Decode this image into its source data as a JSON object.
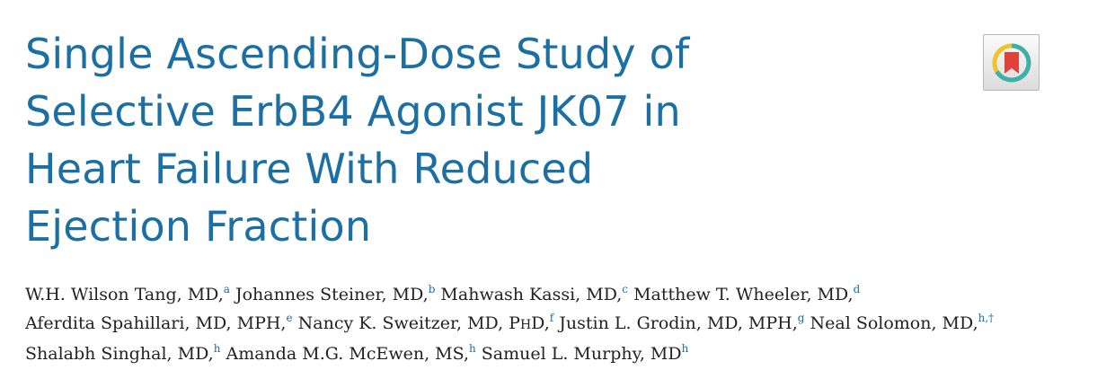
{
  "article": {
    "title_lines": [
      "Single Ascending-Dose Study of",
      "Selective ErbB4 Agonist JK07 in",
      "Heart Failure With Reduced",
      "Ejection Fraction"
    ]
  },
  "crossmark": {
    "icon": "crossmark-icon",
    "colors": {
      "ring_teal": "#3db0a8",
      "ring_yellow": "#f2c12e",
      "bookmark_red": "#e0423b"
    }
  },
  "authors": {
    "lines": [
      [
        {
          "name": "W.H. Wilson Tang, MD,",
          "aff": "a"
        },
        {
          "name": "Johannes Steiner, MD,",
          "aff": "b"
        },
        {
          "name": "Mahwash Kassi, MD,",
          "aff": "c"
        },
        {
          "name": "Matthew T. Wheeler, MD,",
          "aff": "d"
        }
      ],
      [
        {
          "name": "Aferdita Spahillari, MD, MPH,",
          "aff": "e"
        },
        {
          "name_prefix": "Nancy K. Sweitzer, MD, P",
          "name_small": "H",
          "name_suffix": "D,",
          "aff": "f"
        },
        {
          "name": "Justin L. Grodin, MD, MPH,",
          "aff": "g"
        },
        {
          "name": "Neal Solomon, MD,",
          "aff": "h,†"
        }
      ],
      [
        {
          "name": "Shalabh Singhal, MD,",
          "aff": "h"
        },
        {
          "name": "Amanda M.G. McEwen, MS,",
          "aff": "h"
        },
        {
          "name": "Samuel L. Murphy, MD",
          "aff": "h"
        }
      ]
    ]
  }
}
